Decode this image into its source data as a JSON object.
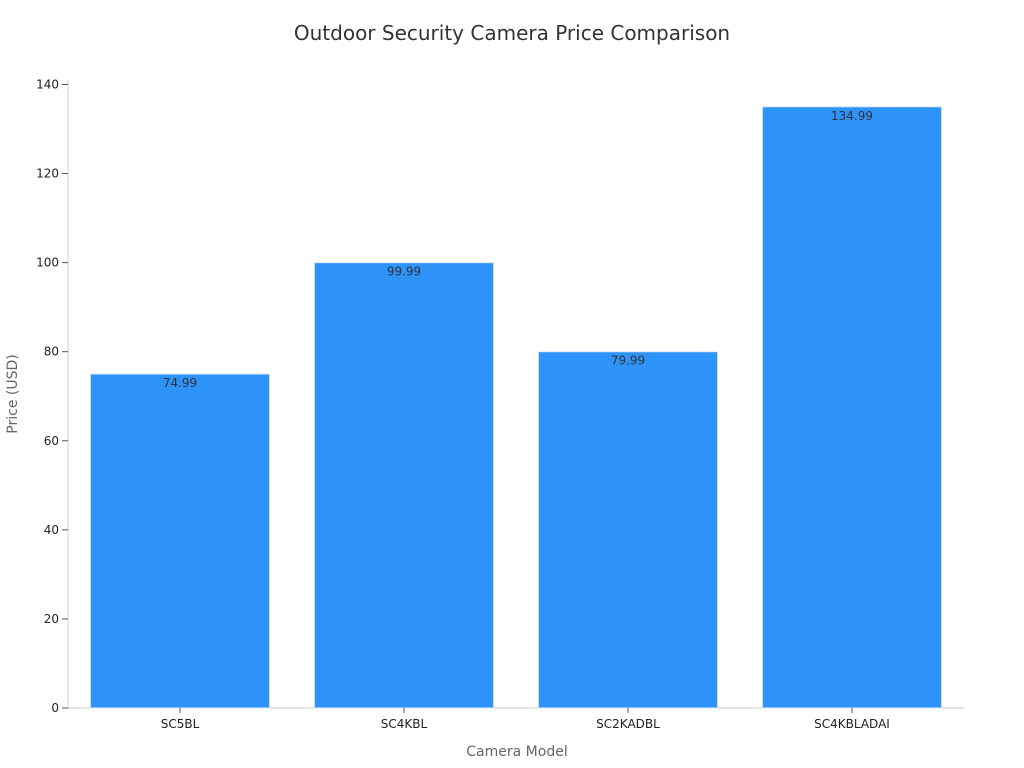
{
  "chart_data": {
    "type": "bar",
    "title": "Outdoor Security Camera Price Comparison",
    "xlabel": "Camera Model",
    "ylabel": "Price (USD)",
    "categories": [
      "SC5BL",
      "SC4KBL",
      "SC2KADBL",
      "SC4KBLADAI"
    ],
    "values": [
      74.99,
      99.99,
      79.99,
      134.99
    ],
    "data_labels": [
      "74.99",
      "99.99",
      "79.99",
      "134.99"
    ],
    "ylim": [
      0,
      141
    ],
    "yticks": [
      0,
      20,
      40,
      60,
      80,
      100,
      120,
      140
    ],
    "bar_color": "#2e93fa",
    "grid": false,
    "legend": "none"
  }
}
